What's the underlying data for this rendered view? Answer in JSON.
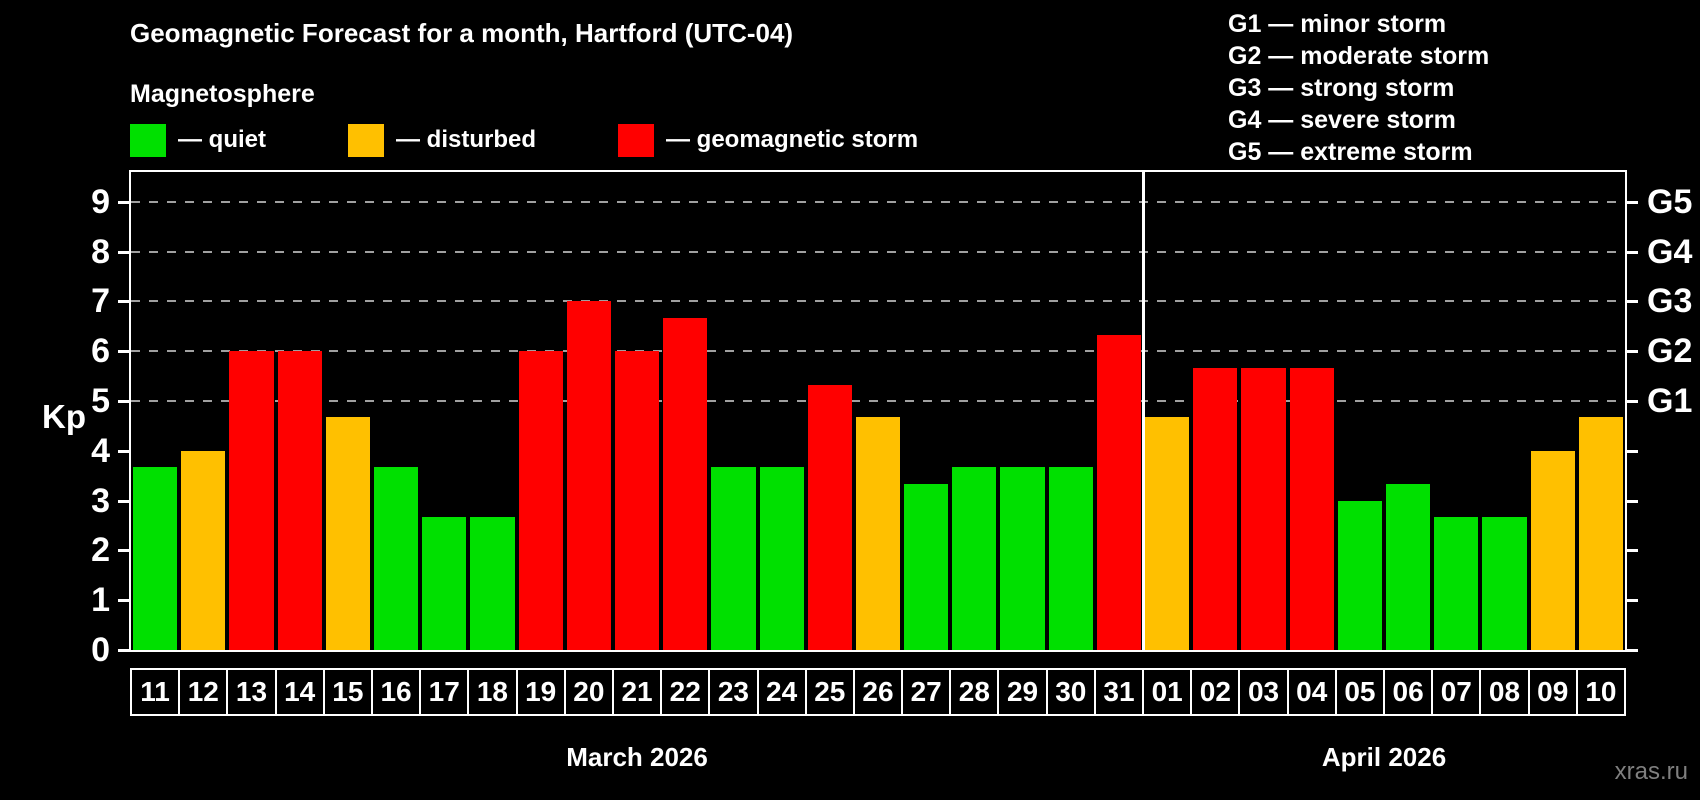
{
  "header": {
    "subtitle": "Magnetosphere",
    "legend": {
      "items": [
        {
          "label": "— quiet",
          "state": "quiet"
        },
        {
          "label": "— disturbed",
          "state": "disturbed"
        },
        {
          "label": "— geomagnetic storm",
          "state": "storm"
        }
      ]
    },
    "g_scale_legend": [
      "G1 — minor storm",
      "G2 — moderate storm",
      "G3 — strong storm",
      "G4 — severe storm",
      "G5 — extreme storm"
    ]
  },
  "colors": {
    "quiet": "#00E000",
    "disturbed": "#FFC000",
    "storm": "#FF0000",
    "gridline": "#A0A0A0",
    "axis": "#FFFFFF",
    "watermark": "#7F7F7F"
  },
  "chart_data": {
    "type": "bar",
    "title": "Geomagnetic Forecast for a month, Hartford (UTC-04)",
    "ylabel": "Kp",
    "ylim": [
      0,
      9.6
    ],
    "yticks": [
      0,
      1,
      2,
      3,
      4,
      5,
      6,
      7,
      8,
      9
    ],
    "gridlines_at": [
      5,
      6,
      7,
      8,
      9
    ],
    "grid": true,
    "legend_position": "top-left",
    "right_axis": [
      {
        "label": "G1",
        "kp": 5
      },
      {
        "label": "G2",
        "kp": 6
      },
      {
        "label": "G3",
        "kp": 7
      },
      {
        "label": "G4",
        "kp": 8
      },
      {
        "label": "G5",
        "kp": 9
      }
    ],
    "months": [
      {
        "label": "March 2026",
        "days": 21
      },
      {
        "label": "April 2026",
        "days": 10
      }
    ],
    "series": [
      {
        "day": "11",
        "kp": 3.67,
        "state": "quiet"
      },
      {
        "day": "12",
        "kp": 4.0,
        "state": "disturbed"
      },
      {
        "day": "13",
        "kp": 6.0,
        "state": "storm"
      },
      {
        "day": "14",
        "kp": 6.0,
        "state": "storm"
      },
      {
        "day": "15",
        "kp": 4.67,
        "state": "disturbed"
      },
      {
        "day": "16",
        "kp": 3.67,
        "state": "quiet"
      },
      {
        "day": "17",
        "kp": 2.67,
        "state": "quiet"
      },
      {
        "day": "18",
        "kp": 2.67,
        "state": "quiet"
      },
      {
        "day": "19",
        "kp": 6.0,
        "state": "storm"
      },
      {
        "day": "20",
        "kp": 7.0,
        "state": "storm"
      },
      {
        "day": "21",
        "kp": 6.0,
        "state": "storm"
      },
      {
        "day": "22",
        "kp": 6.67,
        "state": "storm"
      },
      {
        "day": "23",
        "kp": 3.67,
        "state": "quiet"
      },
      {
        "day": "24",
        "kp": 3.67,
        "state": "quiet"
      },
      {
        "day": "25",
        "kp": 5.33,
        "state": "storm"
      },
      {
        "day": "26",
        "kp": 4.67,
        "state": "disturbed"
      },
      {
        "day": "27",
        "kp": 3.33,
        "state": "quiet"
      },
      {
        "day": "28",
        "kp": 3.67,
        "state": "quiet"
      },
      {
        "day": "29",
        "kp": 3.67,
        "state": "quiet"
      },
      {
        "day": "30",
        "kp": 3.67,
        "state": "quiet"
      },
      {
        "day": "31",
        "kp": 6.33,
        "state": "storm"
      },
      {
        "day": "01",
        "kp": 4.67,
        "state": "disturbed"
      },
      {
        "day": "02",
        "kp": 5.67,
        "state": "storm"
      },
      {
        "day": "03",
        "kp": 5.67,
        "state": "storm"
      },
      {
        "day": "04",
        "kp": 5.67,
        "state": "storm"
      },
      {
        "day": "05",
        "kp": 3.0,
        "state": "quiet"
      },
      {
        "day": "06",
        "kp": 3.33,
        "state": "quiet"
      },
      {
        "day": "07",
        "kp": 2.67,
        "state": "quiet"
      },
      {
        "day": "08",
        "kp": 2.67,
        "state": "quiet"
      },
      {
        "day": "09",
        "kp": 4.0,
        "state": "disturbed"
      },
      {
        "day": "10",
        "kp": 4.67,
        "state": "disturbed"
      }
    ]
  },
  "footer": {
    "watermark": "xras.ru"
  }
}
